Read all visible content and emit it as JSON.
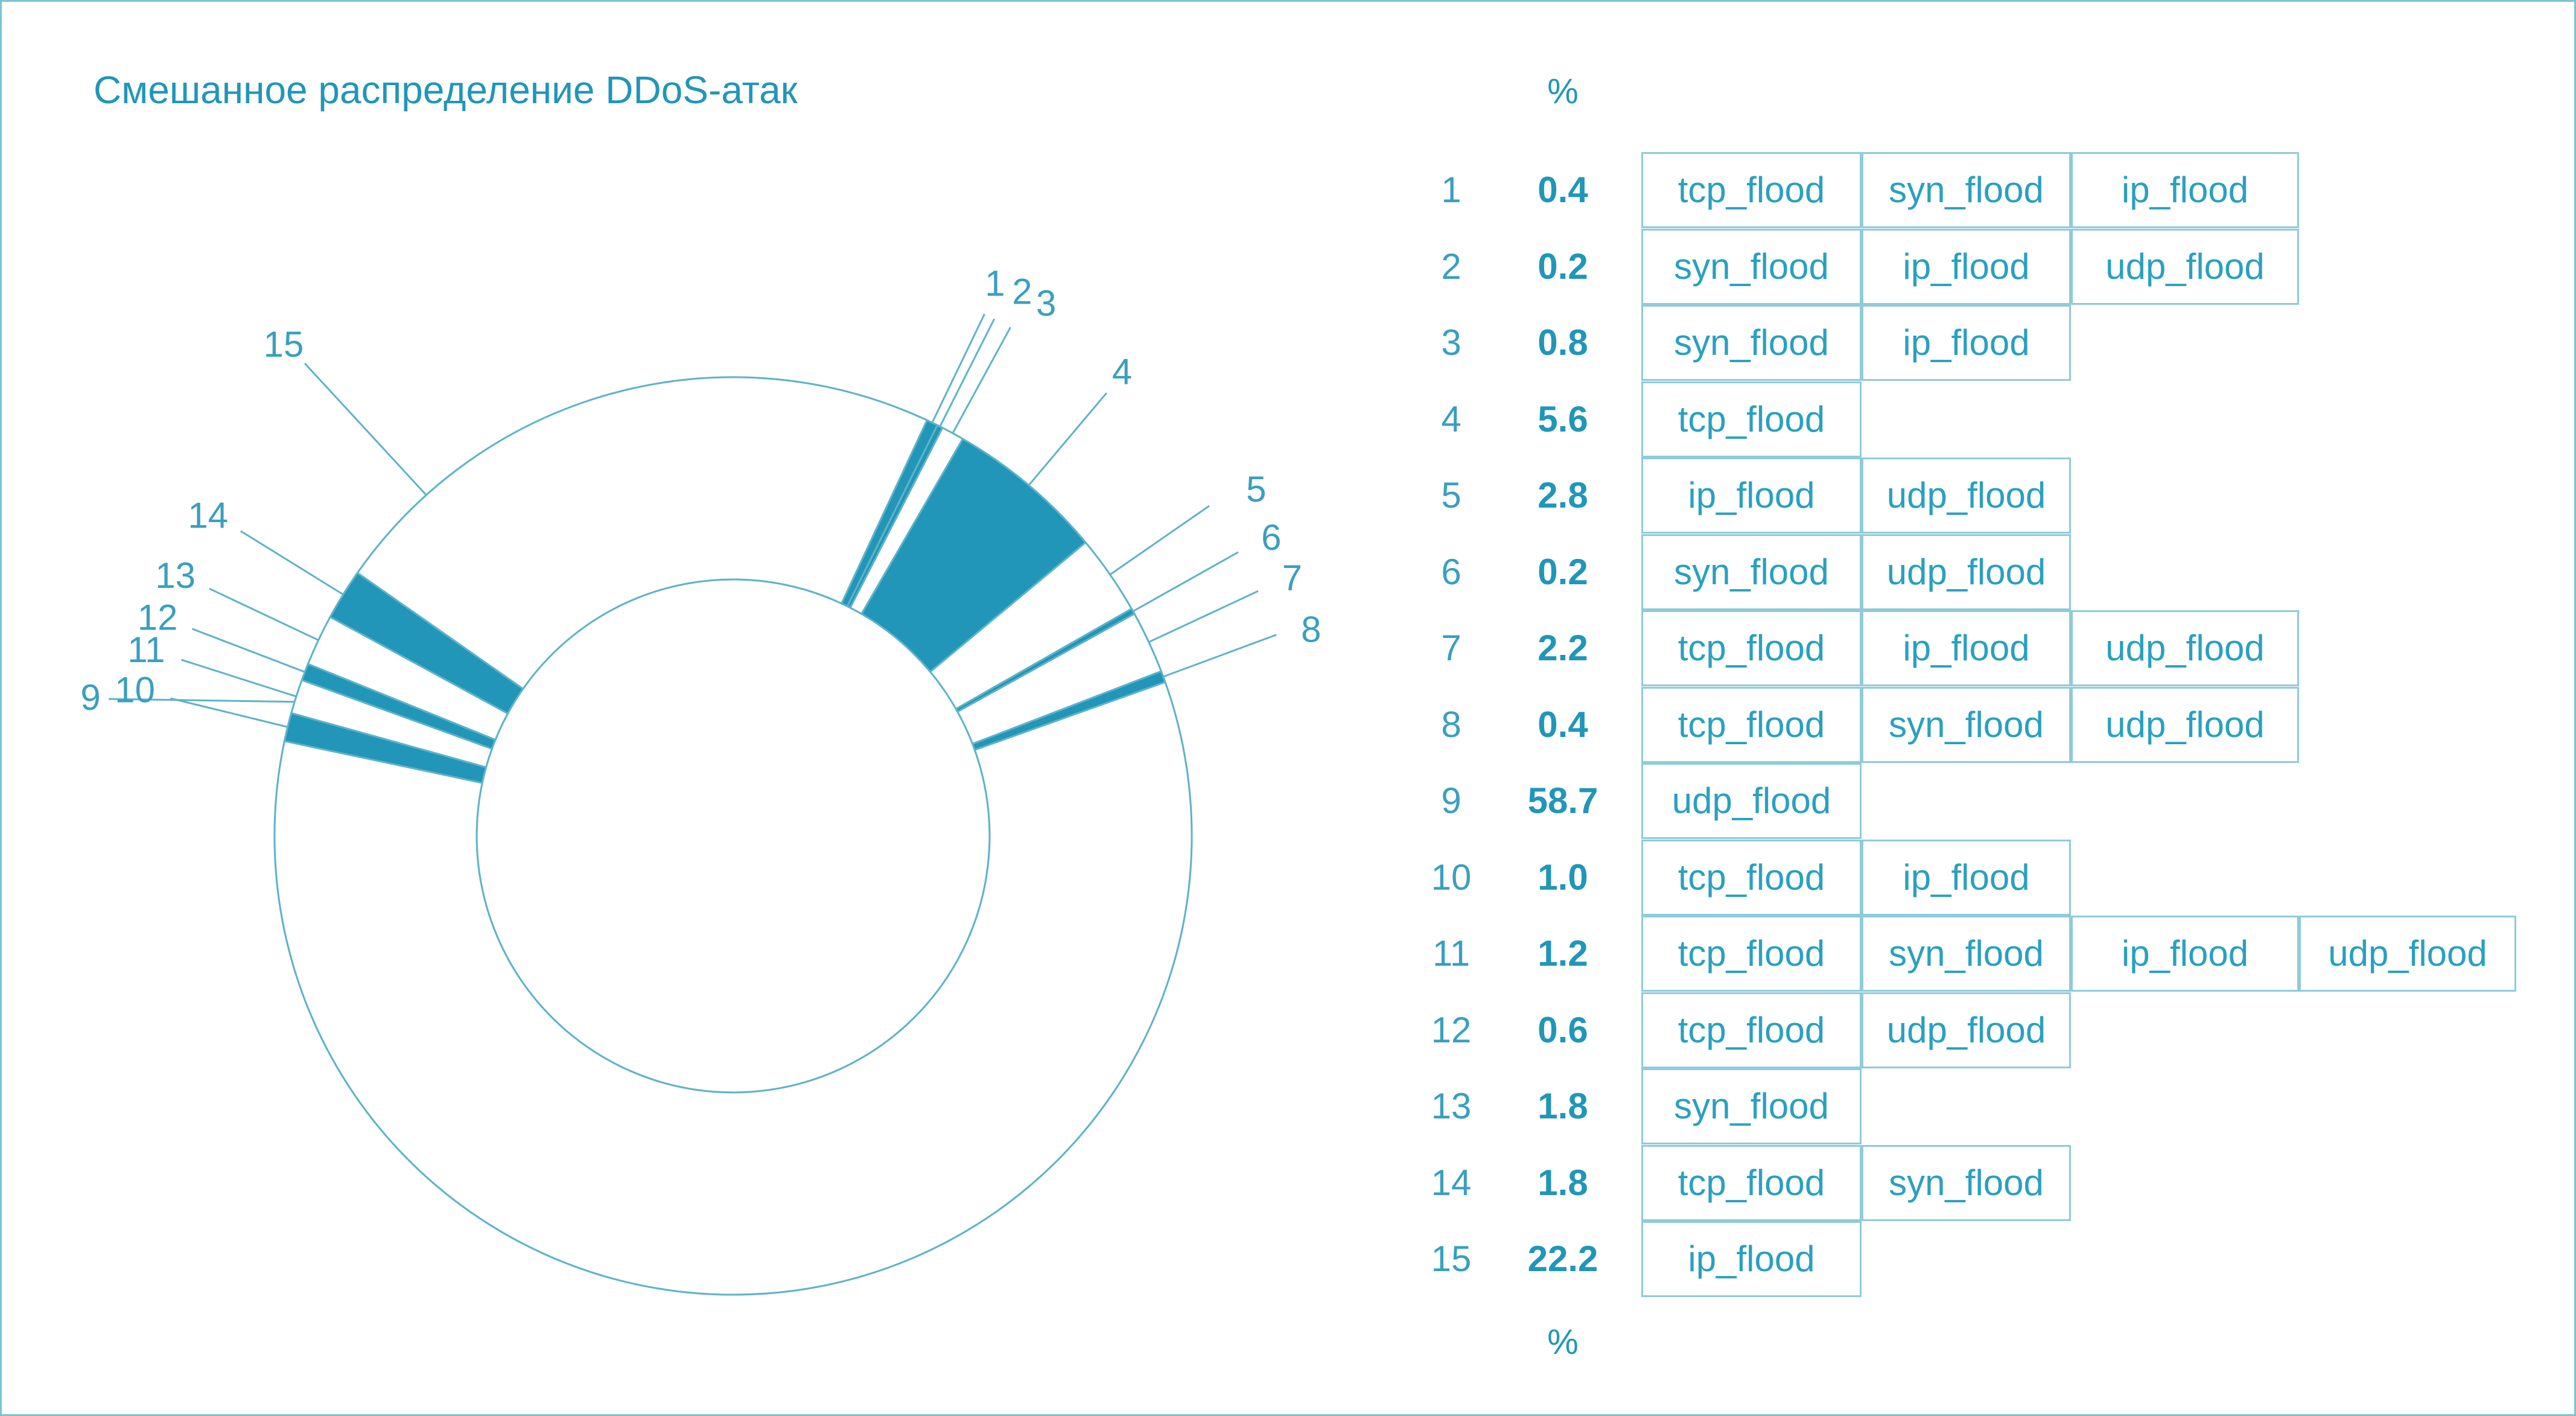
{
  "title": "Смешанное распределение DDoS-атак",
  "percent_header_top": "%",
  "percent_header_bottom": "%",
  "colors": {
    "accent": "#2196b8",
    "outline": "#5fb3c9",
    "text": "#3a9fbe"
  },
  "chart_data": {
    "type": "pie",
    "title": "Смешанное распределение DDoS-атак",
    "units": "%",
    "rows": [
      {
        "label": "1",
        "value": 0.4,
        "value_text": "0.4",
        "attacks": [
          "tcp_flood",
          "syn_flood",
          "ip_flood"
        ]
      },
      {
        "label": "2",
        "value": 0.2,
        "value_text": "0.2",
        "attacks": [
          "syn_flood",
          "ip_flood",
          "udp_flood"
        ]
      },
      {
        "label": "3",
        "value": 0.8,
        "value_text": "0.8",
        "attacks": [
          "syn_flood",
          "ip_flood"
        ]
      },
      {
        "label": "4",
        "value": 5.6,
        "value_text": "5.6",
        "attacks": [
          "tcp_flood"
        ]
      },
      {
        "label": "5",
        "value": 2.8,
        "value_text": "2.8",
        "attacks": [
          "ip_flood",
          "udp_flood"
        ]
      },
      {
        "label": "6",
        "value": 0.2,
        "value_text": "0.2",
        "attacks": [
          "syn_flood",
          "udp_flood"
        ]
      },
      {
        "label": "7",
        "value": 2.2,
        "value_text": "2.2",
        "attacks": [
          "tcp_flood",
          "ip_flood",
          "udp_flood"
        ]
      },
      {
        "label": "8",
        "value": 0.4,
        "value_text": "0.4",
        "attacks": [
          "tcp_flood",
          "syn_flood",
          "udp_flood"
        ]
      },
      {
        "label": "9",
        "value": 58.7,
        "value_text": "58.7",
        "attacks": [
          "udp_flood"
        ]
      },
      {
        "label": "10",
        "value": 1.0,
        "value_text": "1.0",
        "attacks": [
          "tcp_flood",
          "ip_flood"
        ]
      },
      {
        "label": "11",
        "value": 1.2,
        "value_text": "1.2",
        "attacks": [
          "tcp_flood",
          "syn_flood",
          "ip_flood",
          "udp_flood"
        ]
      },
      {
        "label": "12",
        "value": 0.6,
        "value_text": "0.6",
        "attacks": [
          "tcp_flood",
          "udp_flood"
        ]
      },
      {
        "label": "13",
        "value": 1.8,
        "value_text": "1.8",
        "attacks": [
          "syn_flood"
        ]
      },
      {
        "label": "14",
        "value": 1.8,
        "value_text": "1.8",
        "attacks": [
          "tcp_flood",
          "syn_flood"
        ]
      },
      {
        "label": "15",
        "value": 22.2,
        "value_text": "22.2",
        "attacks": [
          "ip_flood"
        ]
      }
    ],
    "filled_slices": [
      "1",
      "2",
      "4",
      "6",
      "8",
      "10",
      "12",
      "14"
    ]
  }
}
